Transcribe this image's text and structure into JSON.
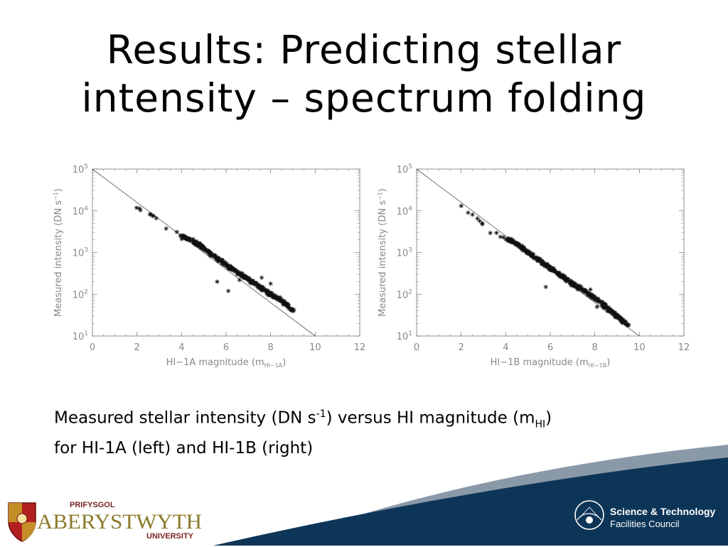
{
  "slide": {
    "title_line1": "Results: Predicting stellar",
    "title_line2": "intensity – spectrum folding",
    "caption": {
      "line1_a": "Measured stellar intensity (DN s",
      "line1_sup": "-1",
      "line1_b": ") versus HI magnitude (m",
      "line1_sub": "HI",
      "line1_c": ")",
      "line2": "for HI-1A (left) and HI-1B (right)"
    }
  },
  "logos": {
    "aber_small": "PRIFYSGOL",
    "aber_main": "ABERYSTWYTH",
    "aber_sub": "UNIVERSITY",
    "stfc_line1": "Science & Technology",
    "stfc_line2": "Facilities Council"
  },
  "colors": {
    "navy": "#0d3558",
    "grey": "#8a99a8",
    "gold": "#8b7a2a",
    "maroon": "#7a1f1f"
  },
  "chart_data": [
    {
      "type": "scatter",
      "xlabel": "HI−1A magnitude (m",
      "xlabel_sub": "HI−1A",
      "xlabel_end": ")",
      "ylabel": "Measured intensity (DN s",
      "ylabel_sup": "−1",
      "ylabel_end": ")",
      "xlim": [
        0,
        12
      ],
      "ylim": [
        10,
        100000
      ],
      "yscale": "log",
      "xticks": [
        "0",
        "2",
        "4",
        "6",
        "8",
        "10",
        "12"
      ],
      "yticks": [
        {
          "base": "10",
          "exp": "1",
          "v": 10
        },
        {
          "base": "10",
          "exp": "2",
          "v": 100
        },
        {
          "base": "10",
          "exp": "3",
          "v": 1000
        },
        {
          "base": "10",
          "exp": "4",
          "v": 10000
        },
        {
          "base": "10",
          "exp": "5",
          "v": 100000
        }
      ],
      "fit_line": [
        [
          0,
          100000
        ],
        [
          10,
          10
        ]
      ],
      "cloud": [
        [
          2.0,
          12000
        ],
        [
          2.5,
          9000
        ],
        [
          3.5,
          3500
        ],
        [
          4.0,
          2500
        ],
        [
          4.4,
          2000
        ],
        [
          5.0,
          1300
        ],
        [
          5.5,
          800
        ],
        [
          6.0,
          500
        ],
        [
          6.5,
          340
        ],
        [
          7.0,
          230
        ],
        [
          7.5,
          150
        ],
        [
          8.0,
          100
        ],
        [
          8.5,
          70
        ],
        [
          8.8,
          50
        ],
        [
          9.0,
          40
        ]
      ],
      "outliers": [
        [
          5.6,
          200
        ],
        [
          6.1,
          120
        ],
        [
          6.6,
          220
        ],
        [
          7.6,
          250
        ],
        [
          8.0,
          180
        ]
      ]
    },
    {
      "type": "scatter",
      "xlabel": "HI−1B magnitude (m",
      "xlabel_sub": "HI−1B",
      "xlabel_end": ")",
      "ylabel": "Measured intensity (DN s",
      "ylabel_sup": "−1",
      "ylabel_end": ")",
      "xlim": [
        0,
        12
      ],
      "ylim": [
        10,
        100000
      ],
      "yscale": "log",
      "xticks": [
        "0",
        "2",
        "4",
        "6",
        "8",
        "10",
        "12"
      ],
      "yticks": [
        {
          "base": "10",
          "exp": "1",
          "v": 10
        },
        {
          "base": "10",
          "exp": "2",
          "v": 100
        },
        {
          "base": "10",
          "exp": "3",
          "v": 1000
        },
        {
          "base": "10",
          "exp": "4",
          "v": 10000
        },
        {
          "base": "10",
          "exp": "5",
          "v": 100000
        }
      ],
      "fit_line": [
        [
          0,
          100000
        ],
        [
          10,
          10
        ]
      ],
      "cloud": [
        [
          2.0,
          12000
        ],
        [
          2.4,
          9000
        ],
        [
          3.3,
          3200
        ],
        [
          4.0,
          2200
        ],
        [
          4.5,
          1600
        ],
        [
          5.0,
          1000
        ],
        [
          5.5,
          650
        ],
        [
          6.0,
          420
        ],
        [
          6.5,
          280
        ],
        [
          7.0,
          180
        ],
        [
          7.5,
          120
        ],
        [
          8.0,
          80
        ],
        [
          8.5,
          50
        ],
        [
          9.0,
          30
        ],
        [
          9.5,
          18
        ]
      ],
      "outliers": [
        [
          5.8,
          150
        ],
        [
          7.3,
          160
        ],
        [
          7.8,
          130
        ],
        [
          8.1,
          50
        ]
      ]
    }
  ]
}
